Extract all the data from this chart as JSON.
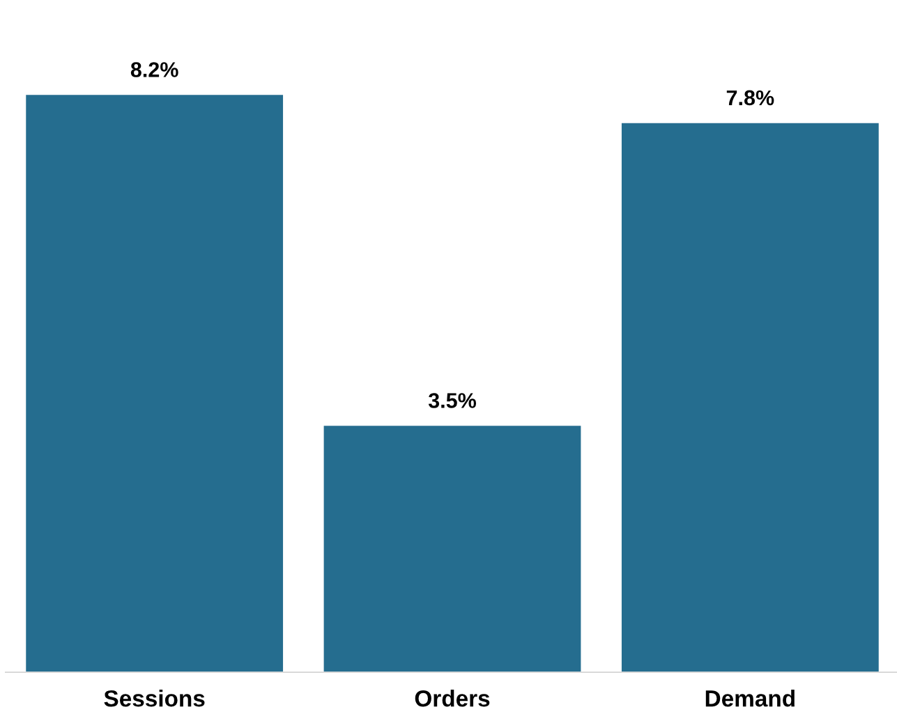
{
  "chart_data": {
    "type": "bar",
    "categories": [
      "Sessions",
      "Orders",
      "Demand"
    ],
    "values": [
      8.2,
      3.5,
      7.8
    ],
    "value_labels": [
      "8.2%",
      "3.5%",
      "7.8%"
    ],
    "color": "#256d8f"
  }
}
